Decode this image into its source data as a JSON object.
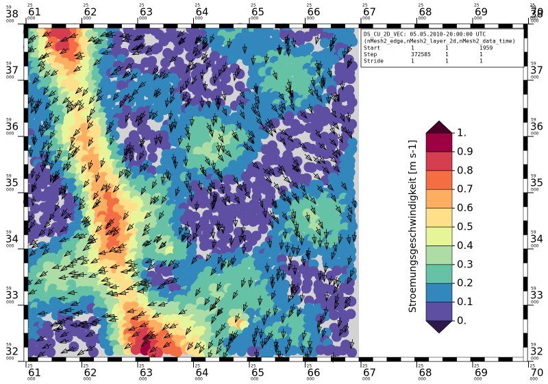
{
  "map": {
    "x_prefix": "25",
    "y_prefix": "59",
    "suffix": "000",
    "xticks": [
      61,
      62,
      63,
      64,
      65,
      66,
      67,
      68,
      69,
      70
    ],
    "yticks": [
      38,
      37,
      36,
      35,
      34,
      33,
      32
    ]
  },
  "info": {
    "title": "DS_CU_2D_VEC: 05.05.2010-20:00:00 UTC",
    "dims": "(nMesh2_edge,nMesh2_layer_2d,nMesh2_data_time)",
    "rows": [
      [
        "Start",
        "1",
        "1",
        "1959"
      ],
      [
        "Step",
        "372585",
        "1",
        "1"
      ],
      [
        "Stride",
        "1",
        "1",
        "1"
      ]
    ]
  },
  "colorbar": {
    "title": "Stroemungsgeschwindigkeit [m s-1]",
    "ticks": [
      {
        "value": 0,
        "label": "0."
      },
      0.1,
      0.2,
      0.3,
      0.4,
      0.5,
      0.6,
      0.7,
      0.8,
      0.9,
      {
        "value": 1,
        "label": "1."
      }
    ],
    "colors": [
      "#2d1a4a",
      "#5e4fa2",
      "#3288bd",
      "#66c2a5",
      "#abdda4",
      "#e6f598",
      "#fee08b",
      "#fdae61",
      "#f46d43",
      "#d53e4f",
      "#9e0142",
      "#4a0024"
    ]
  }
}
